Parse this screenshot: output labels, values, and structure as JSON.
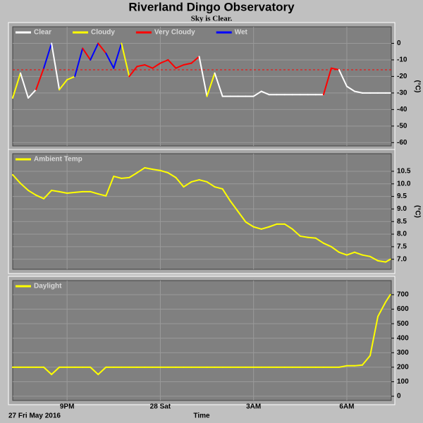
{
  "title": "Riverland Dingo Observatory",
  "subtitle": "Sky is Clear.",
  "date_label": "27 Fri May 2016",
  "xlabel": "Time",
  "chart_data": [
    {
      "type": "line",
      "ylabel": "(°C)",
      "grid": true,
      "legend": "top-left",
      "xlim": [
        19.25,
        31.43
      ],
      "xticks": [
        {
          "value": 21,
          "label": "9PM"
        },
        {
          "value": 24,
          "label": "28 Sat"
        },
        {
          "value": 27,
          "label": "3AM"
        },
        {
          "value": 30,
          "label": "6AM"
        }
      ],
      "ylim": [
        -62,
        10
      ],
      "yticks": [
        0,
        -10,
        -20,
        -30,
        -40,
        -50,
        -60
      ],
      "reference_line": {
        "value": -16,
        "color": "#ff0000"
      },
      "x": [
        19.25,
        19.5,
        19.75,
        20,
        20.25,
        20.5,
        20.75,
        21,
        21.25,
        21.5,
        21.75,
        22,
        22.25,
        22.5,
        22.75,
        23,
        23.25,
        23.5,
        23.75,
        24,
        24.25,
        24.5,
        24.75,
        25,
        25.25,
        25.5,
        25.75,
        26,
        26.25,
        26.5,
        26.75,
        27,
        27.25,
        27.5,
        27.75,
        28,
        28.25,
        28.5,
        28.75,
        29,
        29.25,
        29.5,
        29.75,
        30,
        30.25,
        30.5,
        30.75,
        31,
        31.25,
        31.4
      ],
      "series": [
        {
          "name": "Clear",
          "color": "#ffffff",
          "values": [
            -33,
            null,
            -33,
            -28,
            null,
            null,
            -28,
            null,
            null,
            null,
            null,
            null,
            null,
            null,
            null,
            null,
            null,
            null,
            null,
            null,
            null,
            null,
            null,
            null,
            null,
            -32,
            null,
            -32,
            -32,
            -32,
            -32,
            -32,
            -29,
            -31,
            -31,
            -31,
            -31,
            -31,
            -31,
            -31,
            -31,
            null,
            null,
            -26,
            -29,
            -30,
            -30,
            -30,
            -30,
            -30
          ]
        },
        {
          "name": "Cloudy",
          "color": "#ffff00",
          "values": [
            null,
            -18,
            null,
            null,
            null,
            null,
            null,
            -22,
            -20,
            null,
            null,
            null,
            null,
            null,
            null,
            -20,
            null,
            null,
            null,
            null,
            null,
            null,
            null,
            null,
            null,
            null,
            -18,
            null,
            null,
            null,
            null,
            null,
            null,
            null,
            null,
            null,
            null,
            null,
            null,
            null,
            null,
            null,
            null,
            null,
            null,
            null,
            null,
            null,
            null,
            null
          ]
        },
        {
          "name": "Very Cloudy",
          "color": "#ff0000",
          "values": [
            null,
            null,
            null,
            null,
            -15,
            null,
            null,
            null,
            null,
            null,
            -10,
            null,
            -6,
            null,
            null,
            null,
            -14,
            -13,
            -15,
            -12,
            -10,
            -15,
            -13,
            -12,
            -8,
            null,
            null,
            null,
            null,
            null,
            null,
            null,
            null,
            null,
            null,
            null,
            null,
            null,
            null,
            null,
            null,
            -15,
            -16,
            null,
            null,
            null,
            null,
            null,
            null,
            null
          ]
        },
        {
          "name": "Wet",
          "color": "#0000ff",
          "values": [
            null,
            null,
            null,
            null,
            null,
            0,
            null,
            null,
            null,
            -3,
            null,
            0,
            null,
            -15,
            0,
            null,
            null,
            null,
            null,
            null,
            null,
            null,
            null,
            null,
            null,
            null,
            null,
            null,
            null,
            null,
            null,
            null,
            null,
            null,
            null,
            null,
            null,
            null,
            null,
            null,
            null,
            null,
            null,
            null,
            null,
            null,
            null,
            null,
            null,
            null
          ]
        }
      ]
    },
    {
      "type": "line",
      "ylabel": "(°C)",
      "grid": true,
      "legend": "top-left",
      "xlim": [
        19.25,
        31.43
      ],
      "xticks": [
        {
          "value": 21,
          "label": "9PM"
        },
        {
          "value": 24,
          "label": "28 Sat"
        },
        {
          "value": 27,
          "label": "3AM"
        },
        {
          "value": 30,
          "label": "6AM"
        }
      ],
      "ylim": [
        6.6,
        11.2
      ],
      "yticks": [
        {
          "value": 7,
          "label": "7.0"
        },
        7.5,
        {
          "value": 8,
          "label": "8.0"
        },
        8.5,
        {
          "value": 9,
          "label": "9.0"
        },
        9.5,
        {
          "value": 10,
          "label": "10.0"
        },
        10.5
      ],
      "x": [
        19.25,
        19.5,
        19.75,
        20,
        20.25,
        20.5,
        20.75,
        21,
        21.25,
        21.5,
        21.75,
        22,
        22.25,
        22.5,
        22.75,
        23,
        23.25,
        23.5,
        23.75,
        24,
        24.25,
        24.5,
        24.75,
        25,
        25.25,
        25.5,
        25.75,
        26,
        26.25,
        26.5,
        26.75,
        27,
        27.25,
        27.5,
        27.75,
        28,
        28.25,
        28.5,
        28.75,
        29,
        29.25,
        29.5,
        29.75,
        30,
        30.25,
        30.5,
        30.75,
        31,
        31.25,
        31.4
      ],
      "series": [
        {
          "name": "Ambient Temp",
          "color": "#ffff00",
          "values": [
            10.36,
            10.02,
            9.74,
            9.55,
            9.41,
            9.74,
            9.69,
            9.63,
            9.66,
            9.69,
            9.69,
            9.6,
            9.52,
            10.3,
            10.22,
            10.25,
            10.44,
            10.64,
            10.58,
            10.53,
            10.44,
            10.25,
            9.88,
            10.08,
            10.16,
            10.08,
            9.88,
            9.8,
            9.32,
            8.9,
            8.48,
            8.29,
            8.2,
            8.29,
            8.4,
            8.4,
            8.2,
            7.92,
            7.87,
            7.84,
            7.64,
            7.5,
            7.28,
            7.17,
            7.28,
            7.17,
            7.11,
            6.94,
            6.89,
            7.0
          ]
        }
      ]
    },
    {
      "type": "line",
      "grid": true,
      "legend": "top-left",
      "xlim": [
        19.25,
        31.43
      ],
      "xticks": [
        {
          "value": 21,
          "label": "9PM"
        },
        {
          "value": 24,
          "label": "28 Sat"
        },
        {
          "value": 27,
          "label": "3AM"
        },
        {
          "value": 30,
          "label": "6AM"
        }
      ],
      "ylim": [
        -29,
        797
      ],
      "yticks": [
        0,
        100,
        200,
        300,
        400,
        500,
        600,
        700
      ],
      "x": [
        19.25,
        19.5,
        19.75,
        20,
        20.25,
        20.5,
        20.75,
        21,
        21.25,
        21.5,
        21.75,
        22,
        22.25,
        22.5,
        22.75,
        23,
        23.25,
        23.5,
        23.75,
        24,
        24.25,
        24.5,
        24.75,
        25,
        25.25,
        25.5,
        25.75,
        26,
        26.25,
        26.5,
        26.75,
        27,
        27.25,
        27.5,
        27.75,
        28,
        28.25,
        28.5,
        28.75,
        29,
        29.25,
        29.5,
        29.75,
        30,
        30.25,
        30.5,
        30.75,
        31,
        31.25,
        31.4
      ],
      "series": [
        {
          "name": "Daylight",
          "color": "#ffff00",
          "values": [
            200,
            200,
            200,
            200,
            200,
            150,
            200,
            200,
            200,
            200,
            200,
            150,
            200,
            200,
            200,
            200,
            200,
            200,
            200,
            200,
            200,
            200,
            200,
            200,
            200,
            200,
            200,
            200,
            200,
            200,
            200,
            200,
            200,
            200,
            200,
            200,
            200,
            200,
            200,
            200,
            200,
            200,
            200,
            210,
            210,
            215,
            280,
            550,
            650,
            700
          ]
        }
      ]
    }
  ]
}
